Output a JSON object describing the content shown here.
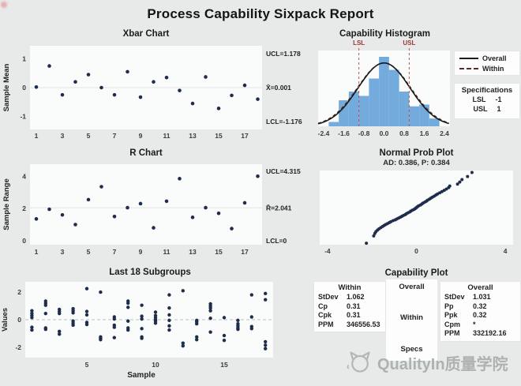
{
  "page": {
    "title": "Process Capability Sixpack Report",
    "watermark_text": "QualityIn质量学院"
  },
  "colors": {
    "background": "#e7eae8",
    "plot_bg": "#fafcfb",
    "point": "#1f2d4b",
    "bar_fill": "#74abdd",
    "spec_red": "#a03636",
    "curve_overall": "#1a1a1a",
    "curve_within": "#5d2a2a",
    "tick_text": "#3a3a3a"
  },
  "chart_data": {
    "xbar": {
      "type": "scatter",
      "title": "Xbar Chart",
      "ylabel": "Sample Mean",
      "values": [
        0.02,
        0.75,
        -0.25,
        0.2,
        0.45,
        0.0,
        -0.25,
        0.55,
        -0.33,
        0.2,
        0.35,
        -0.1,
        -0.55,
        0.37,
        -0.72,
        -0.27,
        0.08,
        -0.4
      ],
      "yticks": [
        -1,
        0,
        1
      ],
      "xticks": [
        1,
        3,
        5,
        7,
        9,
        11,
        13,
        15,
        17
      ],
      "ylim": [
        -1.45,
        1.45
      ],
      "center": 0.001,
      "annotations": [
        {
          "label": "UCL=1.178",
          "value": 1.178
        },
        {
          "label": "X̄=0.001",
          "value": 0.001
        },
        {
          "label": "LCL=-1.176",
          "value": -1.176
        }
      ]
    },
    "r_chart": {
      "type": "scatter",
      "title": "R Chart",
      "ylabel": "Sample Range",
      "values": [
        1.35,
        1.95,
        1.6,
        1.0,
        2.55,
        3.35,
        1.5,
        2.05,
        2.3,
        0.8,
        2.45,
        3.85,
        1.45,
        2.05,
        1.7,
        0.75,
        2.35,
        4.0
      ],
      "yticks": [
        0,
        2,
        4
      ],
      "xticks": [
        1,
        3,
        5,
        7,
        9,
        11,
        13,
        15,
        17
      ],
      "ylim": [
        -0.25,
        4.75
      ],
      "center": 2.041,
      "annotations": [
        {
          "label": "UCL=4.315",
          "value": 4.315
        },
        {
          "label": "R̄=2.041",
          "value": 2.041
        },
        {
          "label": "LCL=0",
          "value": 0
        }
      ]
    },
    "histogram": {
      "type": "bar",
      "title": "Capability Histogram",
      "bin_width": 0.4,
      "bin_centers": [
        -2.0,
        -1.6,
        -1.2,
        -0.8,
        -0.4,
        0.0,
        0.4,
        0.8,
        1.2,
        1.6,
        2.0
      ],
      "counts": [
        0.5,
        3,
        4,
        3.5,
        5.5,
        8,
        6.5,
        4,
        2.3,
        2.5,
        0.9
      ],
      "xticks": [
        "-2.4",
        "-1.6",
        "-0.8",
        "0.0",
        "0.8",
        "1.6",
        "2.4"
      ],
      "xlim": [
        -2.62,
        2.62
      ],
      "lsl": {
        "label": "LSL",
        "value": -1
      },
      "usl": {
        "label": "USL",
        "value": 1
      },
      "curves": {
        "mean": 0.001,
        "sd_overall": 1.031,
        "sd_within": 1.062,
        "peak_count": 7.3
      },
      "legend": [
        {
          "label": "Overall",
          "style": "solid"
        },
        {
          "label": "Within",
          "style": "dashed"
        }
      ],
      "specifications": {
        "title": "Specifications",
        "rows": [
          [
            "LSL",
            "-1"
          ],
          [
            "USL",
            "1"
          ]
        ]
      }
    },
    "prob_plot": {
      "type": "scatter",
      "title": "Normal Prob Plot",
      "subtitle": "AD: 0.386, P: 0.384",
      "xticks": [
        -4,
        0,
        4
      ],
      "xlim": [
        -4.35,
        4.35
      ],
      "points": [
        [
          -2.25,
          -2.45
        ],
        [
          -1.92,
          -1.95
        ],
        [
          -1.87,
          -1.78
        ],
        [
          -1.82,
          -1.65
        ],
        [
          -1.75,
          -1.55
        ],
        [
          -1.68,
          -1.46
        ],
        [
          -1.6,
          -1.38
        ],
        [
          -1.52,
          -1.3
        ],
        [
          -1.45,
          -1.23
        ],
        [
          -1.38,
          -1.16
        ],
        [
          -1.3,
          -1.1
        ],
        [
          -1.22,
          -1.03
        ],
        [
          -1.15,
          -0.97
        ],
        [
          -1.05,
          -0.9
        ],
        [
          -0.95,
          -0.84
        ],
        [
          -0.88,
          -0.78
        ],
        [
          -0.8,
          -0.72
        ],
        [
          -0.72,
          -0.66
        ],
        [
          -0.65,
          -0.6
        ],
        [
          -0.58,
          -0.54
        ],
        [
          -0.5,
          -0.48
        ],
        [
          -0.45,
          -0.42
        ],
        [
          -0.38,
          -0.36
        ],
        [
          -0.3,
          -0.3
        ],
        [
          -0.25,
          -0.24
        ],
        [
          -0.18,
          -0.18
        ],
        [
          -0.1,
          -0.12
        ],
        [
          -0.05,
          -0.06
        ],
        [
          0,
          0
        ],
        [
          0.05,
          0.06
        ],
        [
          0.1,
          0.12
        ],
        [
          0.18,
          0.18
        ],
        [
          0.25,
          0.25
        ],
        [
          0.3,
          0.31
        ],
        [
          0.38,
          0.38
        ],
        [
          0.45,
          0.44
        ],
        [
          0.5,
          0.51
        ],
        [
          0.58,
          0.58
        ],
        [
          0.65,
          0.65
        ],
        [
          0.72,
          0.72
        ],
        [
          0.8,
          0.79
        ],
        [
          0.88,
          0.87
        ],
        [
          0.95,
          0.94
        ],
        [
          1.05,
          1.02
        ],
        [
          1.15,
          1.1
        ],
        [
          1.25,
          1.19
        ],
        [
          1.35,
          1.28
        ],
        [
          1.45,
          1.38
        ],
        [
          1.5,
          1.49
        ],
        [
          1.85,
          1.62
        ],
        [
          1.95,
          1.76
        ],
        [
          2.05,
          1.93
        ],
        [
          2.3,
          2.14
        ],
        [
          2.5,
          2.42
        ]
      ]
    },
    "last18": {
      "type": "scatter",
      "title": "Last 18 Subgroups",
      "xlabel": "Sample",
      "ylabel": "Values",
      "yticks": [
        -2,
        0,
        2
      ],
      "xticks": [
        5,
        10,
        15
      ],
      "ylim": [
        -2.75,
        2.75
      ],
      "zero_line": 0,
      "groups": [
        [
          0.65,
          0.45,
          0.3,
          0.15,
          -0.55,
          -0.75
        ],
        [
          1.35,
          1.2,
          1.05,
          0.45,
          -0.6,
          -0.7
        ],
        [
          0.75,
          0.6,
          0.45,
          -0.85,
          -1.05
        ],
        [
          0.8,
          0.65,
          0.5,
          -0.1,
          -0.25,
          -0.4
        ],
        [
          2.25,
          0.6,
          0.35,
          -0.2,
          -0.35
        ],
        [
          2.0,
          -1.25,
          -1.35,
          -1.45
        ],
        [
          0.2,
          0.05,
          -0.4,
          -0.55,
          -1.3
        ],
        [
          1.35,
          1.2,
          0.9,
          -0.1,
          -0.6,
          -0.75
        ],
        [
          1.05,
          0.25,
          0.05,
          -0.65,
          -1.25,
          -1.35
        ],
        [
          0.55,
          0.3,
          0.15,
          0.0,
          -0.1,
          -0.25
        ],
        [
          1.8,
          0.85,
          0.35,
          -0.05,
          -0.45,
          -0.75
        ],
        [
          2.1,
          -1.7,
          -1.9
        ],
        [
          -0.05,
          -0.15,
          -0.3,
          -1.25,
          -1.45
        ],
        [
          1.15,
          1.0,
          0.85,
          0.65,
          0.1,
          -0.9
        ],
        [
          0.15,
          -1.15,
          -1.5
        ],
        [
          -0.05,
          -0.3,
          -0.45,
          -0.6,
          -0.7
        ],
        [
          1.8,
          0.2,
          -0.5,
          -0.65
        ],
        [
          1.9,
          1.45,
          -1.6,
          -1.85,
          -2.1
        ]
      ]
    },
    "capability": {
      "title": "Capability Plot",
      "within": {
        "header": "Within",
        "rows": [
          [
            "StDev",
            "1.062"
          ],
          [
            "Cp",
            "0.31"
          ],
          [
            "Cpk",
            "0.31"
          ],
          [
            "PPM",
            "346556.53"
          ]
        ]
      },
      "overall": {
        "header": "Overall",
        "rows": [
          [
            "StDev",
            "1.031"
          ],
          [
            "Pp",
            "0.32"
          ],
          [
            "Ppk",
            "0.32"
          ],
          [
            "Cpm",
            "*"
          ],
          [
            "PPM",
            "332192.16"
          ]
        ]
      },
      "middle_labels": [
        "Overall",
        "Within",
        "Specs"
      ]
    }
  }
}
